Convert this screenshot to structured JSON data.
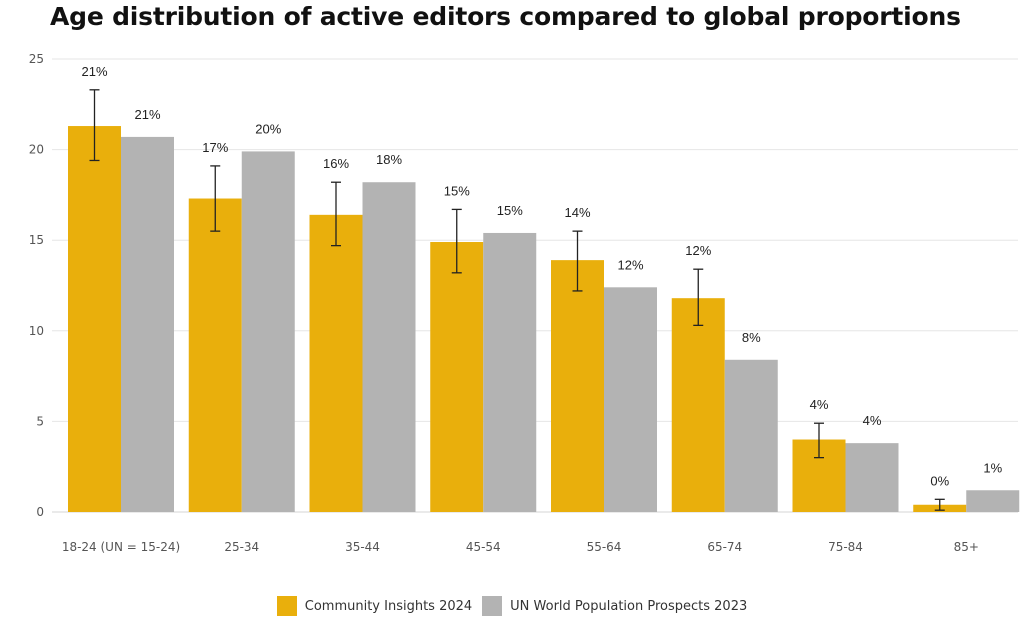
{
  "chart_data": {
    "type": "bar",
    "title": "Age distribution of active editors compared to global proportions",
    "xlabel": "",
    "ylabel": "",
    "ylim": [
      0,
      25
    ],
    "yticks": [
      0,
      5,
      10,
      15,
      20,
      25
    ],
    "grid": true,
    "legend_position": "bottom",
    "categories": [
      "18-24 (UN = 15-24)",
      "25-34",
      "35-44",
      "45-54",
      "55-64",
      "65-74",
      "75-84",
      "85+"
    ],
    "series": [
      {
        "name": "Community Insights 2024",
        "color": "#E9AF0C",
        "values": [
          21.3,
          17.3,
          16.4,
          14.9,
          13.9,
          11.8,
          4.0,
          0.4
        ],
        "labels": [
          "21%",
          "17%",
          "16%",
          "15%",
          "14%",
          "12%",
          "4%",
          "0%"
        ],
        "error_low": [
          19.4,
          15.5,
          14.7,
          13.2,
          12.2,
          10.3,
          3.0,
          0.1
        ],
        "error_high": [
          23.3,
          19.1,
          18.2,
          16.7,
          15.5,
          13.4,
          4.9,
          0.7
        ]
      },
      {
        "name": "UN World Population Prospects 2023",
        "color": "#B3B3B3",
        "values": [
          20.7,
          19.9,
          18.2,
          15.4,
          12.4,
          8.4,
          3.8,
          1.2
        ],
        "labels": [
          "21%",
          "20%",
          "18%",
          "15%",
          "12%",
          "8%",
          "4%",
          "1%"
        ]
      }
    ]
  }
}
